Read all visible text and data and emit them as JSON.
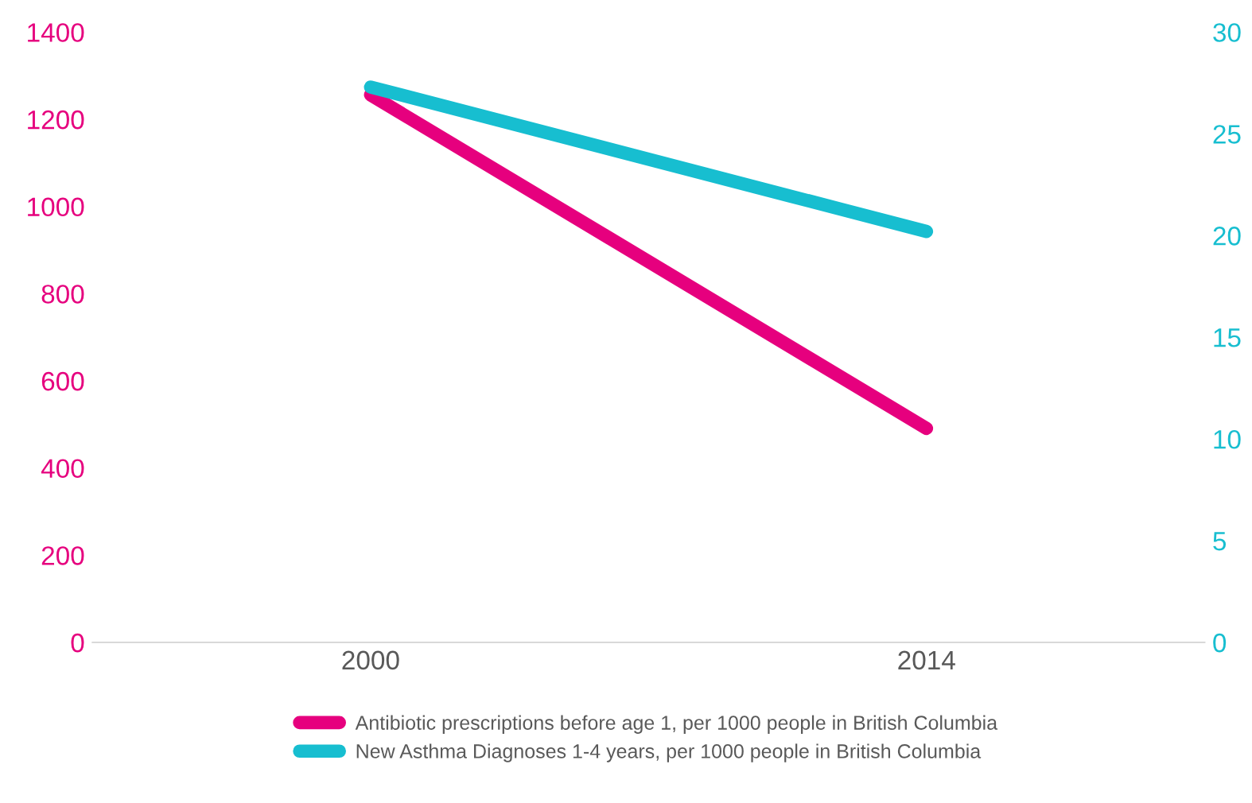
{
  "chart_data": {
    "type": "line",
    "categories": [
      "2000",
      "2014"
    ],
    "series": [
      {
        "name": "Antibiotic prescriptions before age 1, per 1000 people in British Columbia",
        "color": "#e6007e",
        "values": [
          1256,
          491
        ]
      },
      {
        "name": "New Asthma Diagnoses 1-4 years, per 1000 people in British Columbia",
        "color": "#17bed0",
        "values": [
          27.3,
          20.2
        ],
        "axis": "y2"
      }
    ],
    "ylim": [
      0,
      1400
    ],
    "yticks": [
      0,
      200,
      400,
      600,
      800,
      1000,
      1200,
      1400
    ],
    "y2lim": [
      0,
      30
    ],
    "y2ticks": [
      0,
      5,
      10,
      15,
      20,
      25,
      30
    ],
    "grid": false,
    "legend": "bottom",
    "marker": "none",
    "line_style": "solid"
  }
}
